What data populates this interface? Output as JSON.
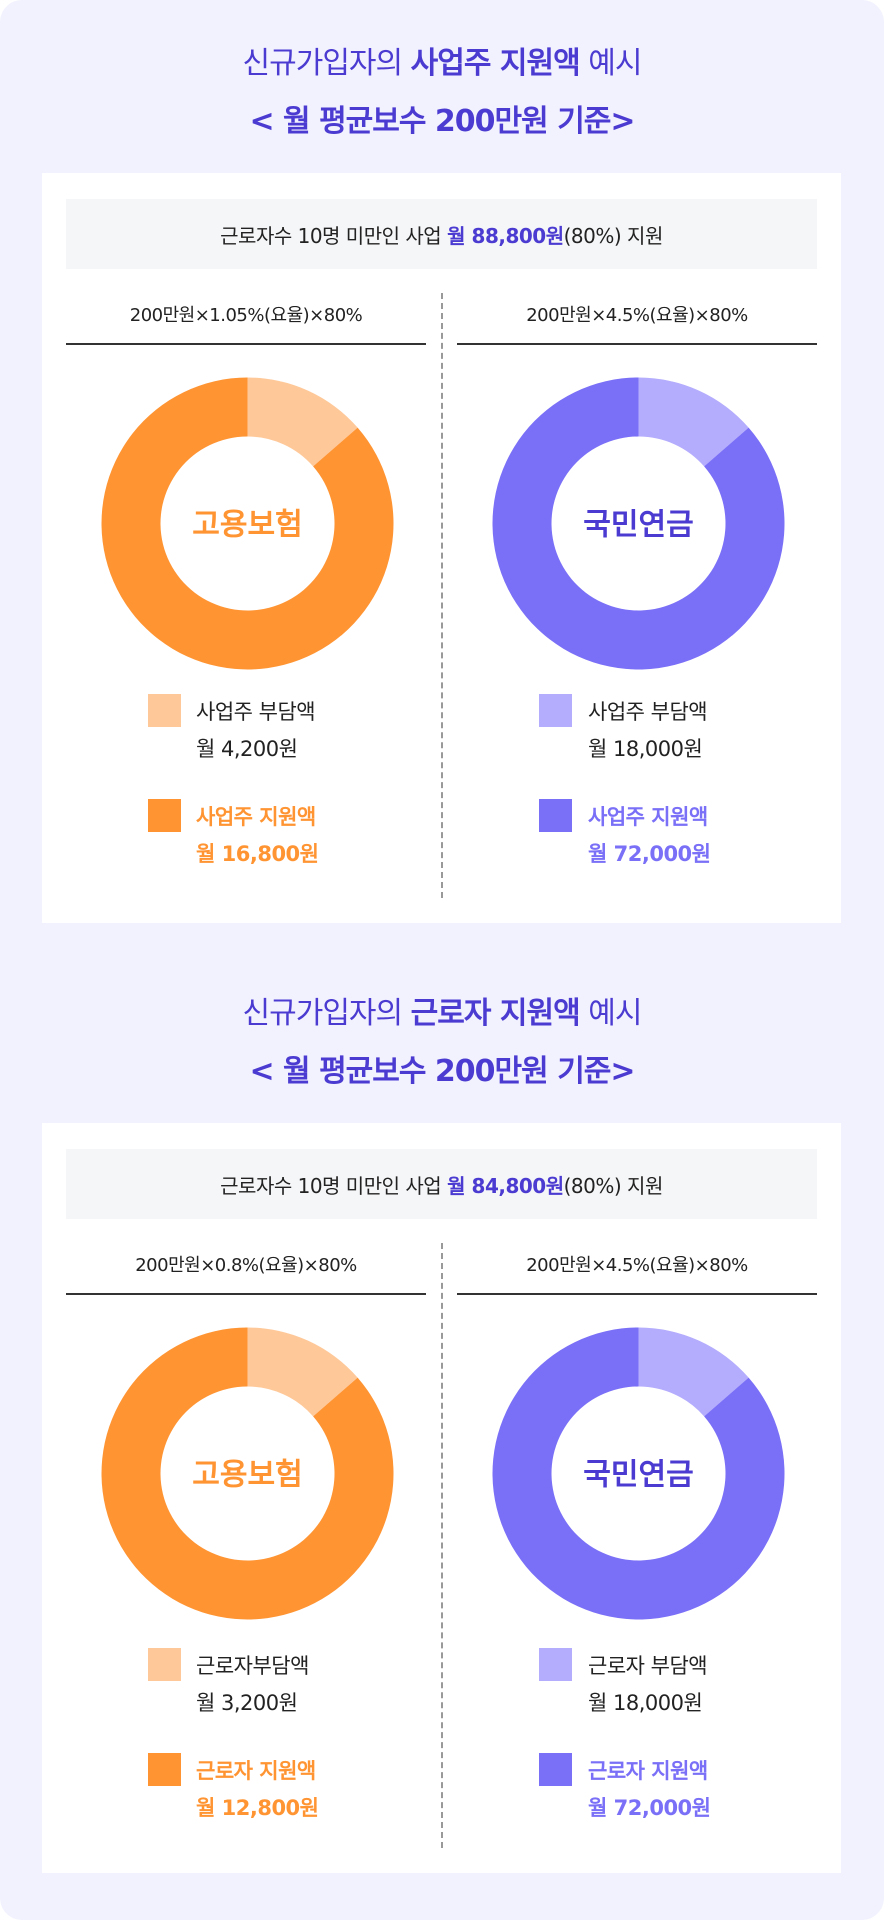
{
  "sections": [
    {
      "title_line1_prefix": "신규가입자의 ",
      "title_line1_bold": "사업주 지원액",
      "title_line1_suffix": " 예시",
      "title_line2": "< 월 평균보수 200만원 기준>",
      "summary_prefix": "근로자수 10명 미만인 사업",
      "summary_highlight": "월 88,800원",
      "summary_suffix": "(80%) 지원",
      "columns": [
        {
          "formula": "200만원×1.05%(요율)×80%",
          "center_label": "고용보험",
          "burden_label": "사업주 부담액",
          "burden_value": "월 4,200원",
          "support_label": "사업주 지원액",
          "support_value": "월 16,800원",
          "burden_share_shown": 0.136,
          "colors": {
            "main": "#ff9433",
            "light": "#ffc899"
          }
        },
        {
          "formula": "200만원×4.5%(요율)×80%",
          "center_label": "국민연금",
          "burden_label": "사업주 부담액",
          "burden_value": "월 18,000원",
          "support_label": "사업주 지원액",
          "support_value": "월 72,000원",
          "burden_share_shown": 0.136,
          "colors": {
            "main": "#7a6ff7",
            "light": "#b4acfd"
          }
        }
      ]
    },
    {
      "title_line1_prefix": "신규가입자의 ",
      "title_line1_bold": "근로자 지원액",
      "title_line1_suffix": " 예시",
      "title_line2": "< 월 평균보수 200만원 기준>",
      "summary_prefix": "근로자수 10명 미만인 사업",
      "summary_highlight": "월 84,800원",
      "summary_suffix": "(80%) 지원",
      "columns": [
        {
          "formula": "200만원×0.8%(요율)×80%",
          "center_label": "고용보험",
          "burden_label": "근로자부담액",
          "burden_value": "월 3,200원",
          "support_label": "근로자 지원액",
          "support_value": "월 12,800원",
          "burden_share_shown": 0.136,
          "colors": {
            "main": "#ff9433",
            "light": "#ffc899"
          }
        },
        {
          "formula": "200만원×4.5%(요율)×80%",
          "center_label": "국민연금",
          "burden_label": "근로자 부담액",
          "burden_value": "월 18,000원",
          "support_label": "근로자 지원액",
          "support_value": "월 72,000원",
          "burden_share_shown": 0.136,
          "colors": {
            "main": "#7a6ff7",
            "light": "#b4acfd"
          }
        }
      ]
    }
  ],
  "colors": {
    "title": "#4b3bd1",
    "background": "#f2f2fe",
    "summary_bg": "#f5f6f8"
  }
}
